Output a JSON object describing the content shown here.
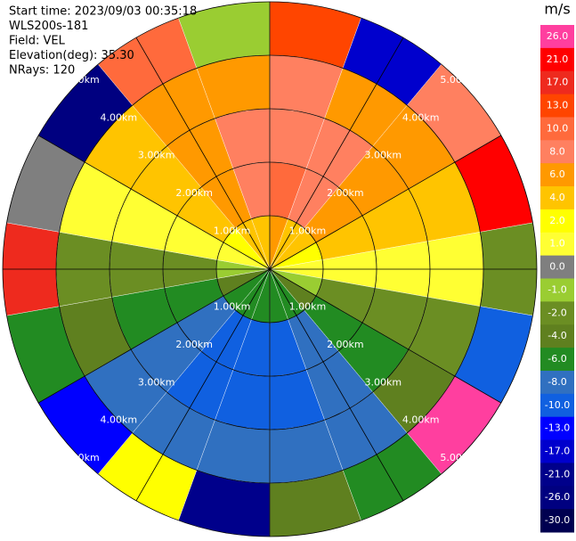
{
  "chart_data": {
    "type": "ppi",
    "header": [
      "Start time: 2023/09/03 00:35:18",
      "WLS200s-181",
      "Field: VEL",
      "Elevation(deg): 35.30",
      "NRays: 120"
    ],
    "units": "m/s",
    "rlim": [
      0,
      5
    ],
    "rings": [
      {
        "value": 1,
        "label": "1.00km"
      },
      {
        "value": 2,
        "label": "2.00km"
      },
      {
        "value": 3,
        "label": "3.00km"
      },
      {
        "value": 4,
        "label": "4.00km"
      },
      {
        "value": 5,
        "label": "5.00km"
      }
    ],
    "range_bins": [
      0,
      1,
      2,
      3,
      4,
      5
    ],
    "azimuth_bins": [
      0,
      20,
      40,
      60,
      80,
      100,
      120,
      140,
      160,
      180,
      200,
      220,
      240,
      260,
      280,
      300,
      320,
      340,
      360
    ],
    "values": [
      [
        6,
        5.6,
        4.6,
        3,
        1,
        -1,
        -3,
        -4.6,
        -5.6,
        -6,
        -5.6,
        -4.6,
        -3,
        -1,
        1,
        3,
        4.6,
        5.6
      ],
      [
        10,
        9.4,
        7.7,
        5,
        1.7,
        -1.7,
        -5,
        -7.7,
        -9.4,
        -10,
        -9.4,
        -7.7,
        -5,
        -1.7,
        1.7,
        5,
        7.7,
        9.4
      ],
      [
        9,
        8.5,
        6.9,
        4.5,
        1.5,
        -1.5,
        -4.5,
        -6.9,
        -8.5,
        -9,
        -8.5,
        -6.9,
        -4.5,
        -1.5,
        1.5,
        4.5,
        6.9,
        8.5
      ],
      [
        8,
        7.5,
        6.2,
        4,
        1.4,
        -1.4,
        -4,
        -6.2,
        -7.5,
        -8,
        -7.5,
        -6.2,
        -4,
        -1.4,
        1.4,
        4,
        6.2,
        7.5
      ],
      [
        13,
        -17,
        8,
        21,
        -2,
        -10,
        26,
        -6,
        -4,
        -21,
        2,
        -13,
        -6,
        17,
        0,
        -26,
        10,
        -1
      ]
    ],
    "colorbar": {
      "levels": [
        {
          "value": 26,
          "label": "26.0"
        },
        {
          "value": 21,
          "label": "21.0"
        },
        {
          "value": 17,
          "label": "17.0"
        },
        {
          "value": 13,
          "label": "13.0"
        },
        {
          "value": 10,
          "label": "10.0"
        },
        {
          "value": 8,
          "label": "8.0"
        },
        {
          "value": 6,
          "label": "6.0"
        },
        {
          "value": 4,
          "label": "4.0"
        },
        {
          "value": 2,
          "label": "2.0"
        },
        {
          "value": 1,
          "label": "1.0"
        },
        {
          "value": 0,
          "label": "0.0"
        },
        {
          "value": -1,
          "label": "-1.0"
        },
        {
          "value": -2,
          "label": "-2.0"
        },
        {
          "value": -4,
          "label": "-4.0"
        },
        {
          "value": -6,
          "label": "-6.0"
        },
        {
          "value": -8,
          "label": "-8.0"
        },
        {
          "value": -10,
          "label": "-10.0"
        },
        {
          "value": -13,
          "label": "-13.0"
        },
        {
          "value": -17,
          "label": "-17.0"
        },
        {
          "value": -21,
          "label": "-21.0"
        },
        {
          "value": -26,
          "label": "-26.0"
        },
        {
          "value": -30,
          "label": "-30.0"
        }
      ],
      "colors": [
        "#ff3f9f",
        "#ff0000",
        "#ee2a1e",
        "#ff4500",
        "#ff6a3c",
        "#ff8060",
        "#ff9900",
        "#ffc400",
        "#ffff00",
        "#ffff33",
        "#7f7f7f",
        "#9acd32",
        "#6b8e23",
        "#5f801f",
        "#228b22",
        "#3070c0",
        "#1060e0",
        "#0000ff",
        "#0000cd",
        "#00008b",
        "#000080",
        "#000050"
      ]
    }
  }
}
